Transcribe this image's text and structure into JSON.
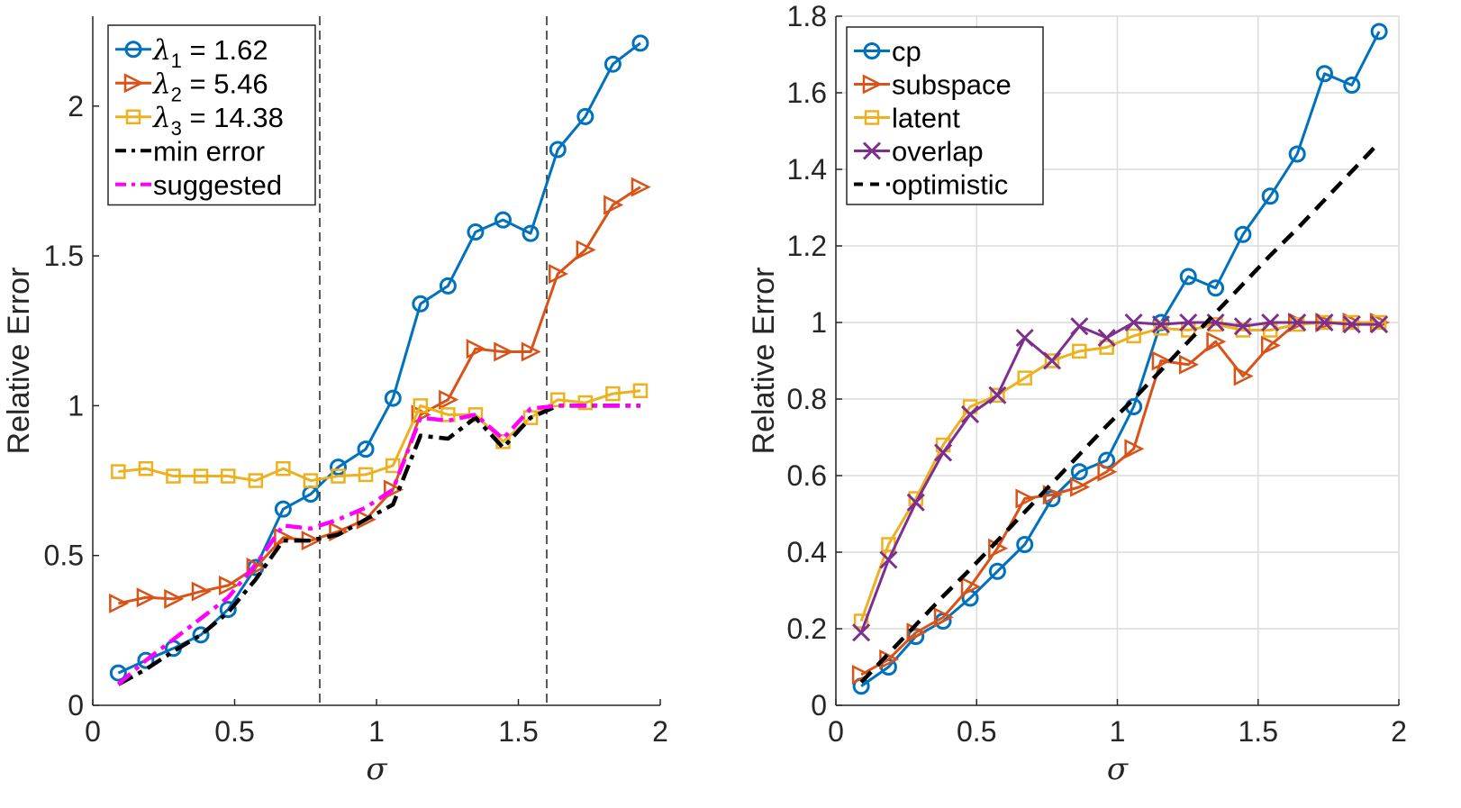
{
  "colors": {
    "blue": "#0072BD",
    "orange": "#D95319",
    "yellow": "#EDB120",
    "purple": "#7E2F8E",
    "magenta": "#FF00FF",
    "black": "#000000"
  },
  "chart_data": [
    {
      "type": "line",
      "xlabel": "σ",
      "ylabel": "Relative Error",
      "xlim": [
        0,
        2
      ],
      "ylim": [
        0,
        2.3
      ],
      "xticks": [
        "0",
        "0.5",
        "1",
        "1.5",
        "2"
      ],
      "yticks": [
        "0",
        "0.5",
        "1",
        "1.5",
        "2"
      ],
      "grid": false,
      "legend_position": "top-left",
      "vlines": [
        0.8,
        1.6
      ],
      "x": [
        0.09,
        0.187,
        0.284,
        0.381,
        0.477,
        0.574,
        0.671,
        0.768,
        0.865,
        0.962,
        1.058,
        1.155,
        1.252,
        1.349,
        1.446,
        1.543,
        1.639,
        1.736,
        1.833,
        1.93
      ],
      "series": [
        {
          "name": "λ1 = 1.62",
          "legend": {
            "symbol": "λ",
            "sub": "1",
            "rest": " = 1.62"
          },
          "color": "#0072BD",
          "marker": "circle",
          "dash": "solid",
          "values": [
            0.108,
            0.15,
            0.19,
            0.235,
            0.32,
            0.46,
            0.655,
            0.705,
            0.795,
            0.855,
            1.025,
            1.34,
            1.4,
            1.58,
            1.62,
            1.575,
            1.855,
            1.965,
            2.14,
            2.21
          ]
        },
        {
          "name": "λ2 = 5.46",
          "legend": {
            "symbol": "λ",
            "sub": "2",
            "rest": " = 5.46"
          },
          "color": "#D95319",
          "marker": "triangle-right",
          "dash": "solid",
          "values": [
            0.34,
            0.36,
            0.355,
            0.38,
            0.4,
            0.46,
            0.56,
            0.55,
            0.58,
            0.62,
            0.72,
            0.97,
            1.02,
            1.19,
            1.18,
            1.18,
            1.44,
            1.52,
            1.67,
            1.73
          ]
        },
        {
          "name": "λ3 = 14.38",
          "legend": {
            "symbol": "λ",
            "sub": "3",
            "rest": " = 14.38"
          },
          "color": "#EDB120",
          "marker": "square",
          "dash": "solid",
          "values": [
            0.78,
            0.79,
            0.765,
            0.765,
            0.765,
            0.75,
            0.79,
            0.75,
            0.765,
            0.77,
            0.8,
            1.0,
            0.97,
            0.97,
            0.88,
            0.96,
            1.02,
            1.01,
            1.04,
            1.05
          ]
        },
        {
          "name": "min error",
          "legend": {
            "symbol": "",
            "sub": "",
            "rest": "min error"
          },
          "color": "#000000",
          "marker": "none",
          "dash": "dashdot",
          "values": [
            0.07,
            0.12,
            0.18,
            0.235,
            0.31,
            0.42,
            0.55,
            0.55,
            0.57,
            0.62,
            0.67,
            0.9,
            0.89,
            0.96,
            0.86,
            0.96,
            1.0,
            1.0,
            1.0,
            1.0
          ]
        },
        {
          "name": "suggested",
          "legend": {
            "symbol": "",
            "sub": "",
            "rest": "suggested"
          },
          "color": "#FF00FF",
          "marker": "none",
          "dash": "dashdot",
          "values": [
            0.07,
            0.15,
            0.22,
            0.29,
            0.36,
            0.47,
            0.6,
            0.59,
            0.62,
            0.66,
            0.72,
            0.96,
            0.95,
            0.97,
            0.89,
            0.99,
            1.0,
            1.0,
            1.0,
            1.0
          ]
        }
      ]
    },
    {
      "type": "line",
      "xlabel": "σ",
      "ylabel": "Relative Error",
      "xlim": [
        0,
        2
      ],
      "ylim": [
        0,
        1.8
      ],
      "xticks": [
        "0",
        "0.5",
        "1",
        "1.5",
        "2"
      ],
      "yticks": [
        "0",
        "0.2",
        "0.4",
        "0.6",
        "0.8",
        "1",
        "1.2",
        "1.4",
        "1.6",
        "1.8"
      ],
      "grid": true,
      "legend_position": "top-left",
      "x": [
        0.09,
        0.187,
        0.284,
        0.381,
        0.477,
        0.574,
        0.671,
        0.768,
        0.865,
        0.962,
        1.058,
        1.155,
        1.252,
        1.349,
        1.446,
        1.543,
        1.639,
        1.736,
        1.833,
        1.93
      ],
      "series": [
        {
          "name": "cp",
          "legend": {
            "symbol": "",
            "sub": "",
            "rest": "cp"
          },
          "color": "#0072BD",
          "marker": "circle",
          "dash": "solid",
          "values": [
            0.05,
            0.1,
            0.18,
            0.22,
            0.28,
            0.35,
            0.42,
            0.54,
            0.61,
            0.64,
            0.78,
            1.0,
            1.12,
            1.09,
            1.23,
            1.33,
            1.44,
            1.65,
            1.62,
            1.76
          ]
        },
        {
          "name": "subspace",
          "legend": {
            "symbol": "",
            "sub": "",
            "rest": "subspace"
          },
          "color": "#D95319",
          "marker": "triangle-right",
          "dash": "solid",
          "values": [
            0.08,
            0.12,
            0.19,
            0.23,
            0.31,
            0.41,
            0.54,
            0.55,
            0.57,
            0.61,
            0.67,
            0.9,
            0.89,
            0.95,
            0.86,
            0.94,
            1.0,
            1.0,
            1.0,
            1.0
          ]
        },
        {
          "name": "latent",
          "legend": {
            "symbol": "",
            "sub": "",
            "rest": "latent"
          },
          "color": "#EDB120",
          "marker": "square",
          "dash": "solid",
          "values": [
            0.22,
            0.42,
            0.54,
            0.68,
            0.78,
            0.81,
            0.855,
            0.9,
            0.925,
            0.935,
            0.965,
            0.985,
            0.98,
            0.995,
            0.98,
            0.98,
            0.995,
            1.0,
            1.0,
            1.0
          ]
        },
        {
          "name": "overlap",
          "legend": {
            "symbol": "",
            "sub": "",
            "rest": "overlap"
          },
          "color": "#7E2F8E",
          "marker": "x",
          "dash": "solid",
          "values": [
            0.19,
            0.38,
            0.53,
            0.66,
            0.76,
            0.81,
            0.96,
            0.9,
            0.99,
            0.96,
            1.0,
            0.995,
            1.0,
            1.0,
            0.99,
            1.0,
            1.0,
            1.0,
            0.995,
            0.995
          ]
        },
        {
          "name": "optimistic",
          "legend": {
            "symbol": "",
            "sub": "",
            "rest": "optimistic"
          },
          "color": "#000000",
          "marker": "none",
          "dash": "dashed",
          "values": [
            0.06,
            0.135,
            0.21,
            0.285,
            0.355,
            0.43,
            0.505,
            0.58,
            0.655,
            0.73,
            0.8,
            0.875,
            0.95,
            1.025,
            1.1,
            1.175,
            1.245,
            1.32,
            1.395,
            1.47
          ]
        }
      ]
    }
  ]
}
